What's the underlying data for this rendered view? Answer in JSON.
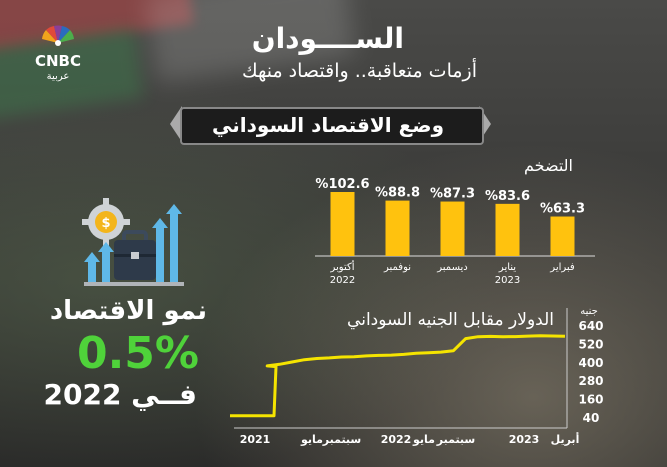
{
  "brand": {
    "logo_text": "CNBC",
    "logo_subtext": "عربية"
  },
  "header": {
    "title": "الســــودان",
    "subtitle": "أزمات متعاقبة.. واقتصاد منهك"
  },
  "section_title": "وضع الاقتصاد السوداني",
  "growth": {
    "label": "نمو الاقتصاد",
    "value": "0.5%",
    "year": "فــي 2022"
  },
  "colors": {
    "bar": "#ffc20e",
    "line": "#f5e400",
    "growth": "#4fd23a"
  },
  "icons": [
    "gear-dollar-icon",
    "briefcase-icon",
    "growth-arrows-icon"
  ],
  "chart_data": [
    {
      "type": "bar",
      "title": "التضخم",
      "categories": [
        "أكتوبر 2022",
        "نوفمبر",
        "ديسمبر",
        "يناير 2023",
        "فبراير"
      ],
      "values": [
        102.6,
        88.8,
        87.3,
        83.6,
        63.3
      ],
      "value_labels": [
        "%102.6",
        "%88.8",
        "%87.3",
        "%83.6",
        "%63.3"
      ],
      "category_lines": [
        [
          "أكتوبر",
          "2022"
        ],
        [
          "نوفمبر"
        ],
        [
          "ديسمبر"
        ],
        [
          "يناير",
          "2023"
        ],
        [
          "فبراير"
        ]
      ],
      "ylim": [
        0,
        110
      ]
    },
    {
      "type": "line",
      "title": "الدولار مقابل الجنيه السوداني",
      "yunit": "جنيه",
      "yticks": [
        40,
        160,
        280,
        400,
        520,
        640
      ],
      "ylim": [
        40,
        640
      ],
      "xticks": [
        "2021",
        "مايو",
        "سبتمبر",
        "2022",
        "مايو",
        "سبتمبر",
        "2023",
        "أبريل"
      ],
      "x": [
        "2021-01",
        "2021-02",
        "2021-02",
        "2021-04",
        "2021-05",
        "2021-06",
        "2021-07",
        "2021-08",
        "2021-09",
        "2021-10",
        "2021-11",
        "2021-12",
        "2022-01",
        "2022-02",
        "2022-03",
        "2022-04",
        "2022-05",
        "2022-06",
        "2022-07",
        "2022-08",
        "2022-09",
        "2022-10",
        "2022-11",
        "2022-12",
        "2023-01",
        "2023-02",
        "2023-03",
        "2023-04"
      ],
      "y": [
        55,
        55,
        375,
        380,
        390,
        405,
        420,
        428,
        432,
        438,
        440,
        445,
        448,
        450,
        455,
        462,
        466,
        470,
        478,
        558,
        570,
        572,
        570,
        571,
        574,
        576,
        575,
        573
      ]
    }
  ]
}
